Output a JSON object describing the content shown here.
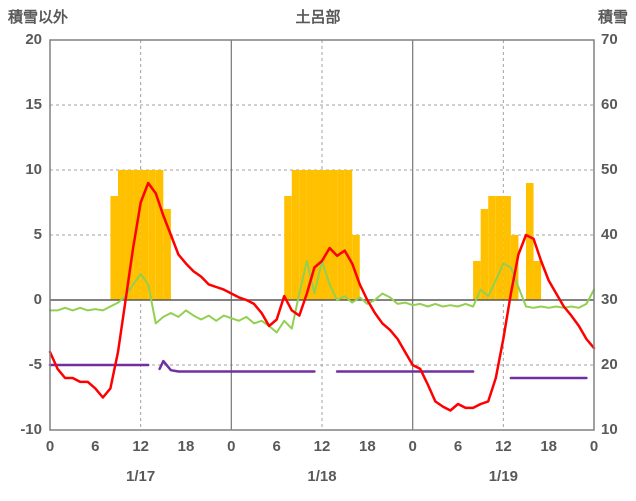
{
  "chart_data": {
    "type": "combo",
    "title": "土呂部",
    "left_axis": {
      "label": "積雪以外",
      "max": 20,
      "min": -10,
      "ticks": [
        20,
        15,
        10,
        5,
        0,
        -5,
        -10
      ]
    },
    "right_axis": {
      "label": "積雪",
      "max": 70,
      "min": 10,
      "ticks": [
        70,
        60,
        50,
        40,
        30,
        20,
        10
      ]
    },
    "x_axis": {
      "hours_total": 72,
      "tick_positions": [
        0,
        6,
        12,
        18,
        24,
        30,
        36,
        42,
        48,
        54,
        60,
        66,
        72
      ],
      "tick_labels": [
        "0",
        "6",
        "12",
        "18",
        "0",
        "6",
        "12",
        "18",
        "0",
        "6",
        "12",
        "18",
        "0"
      ],
      "day_labels": [
        "1/17",
        "1/18",
        "1/19"
      ],
      "day_label_positions": [
        12,
        36,
        60
      ],
      "solid_vlines": [
        24,
        48
      ],
      "dashed_vlines": [
        12,
        36,
        60
      ]
    },
    "grid": {
      "dashed_hlines": [
        15,
        10,
        5,
        -5
      ],
      "zero_line": 0
    },
    "colors": {
      "bar": "#FFC000",
      "red_line": "#FF0000",
      "green_line": "#92D050",
      "purple_line": "#7030A0",
      "grid": "#A0A0A0",
      "border": "#808080",
      "zero": "#595959",
      "text": "#595959",
      "background": "#FFFFFF"
    },
    "series": {
      "orange_bars": {
        "type": "bar",
        "axis": "left",
        "values": [
          [
            8,
            8
          ],
          [
            9,
            10
          ],
          [
            10,
            10
          ],
          [
            11,
            10
          ],
          [
            12,
            10
          ],
          [
            13,
            10
          ],
          [
            14,
            10
          ],
          [
            15,
            7
          ],
          [
            31,
            8
          ],
          [
            32,
            10
          ],
          [
            33,
            10
          ],
          [
            34,
            10
          ],
          [
            35,
            10
          ],
          [
            36,
            10
          ],
          [
            37,
            10
          ],
          [
            38,
            10
          ],
          [
            39,
            10
          ],
          [
            40,
            5
          ],
          [
            56,
            3
          ],
          [
            57,
            7
          ],
          [
            58,
            8
          ],
          [
            59,
            8
          ],
          [
            60,
            8
          ],
          [
            61,
            5
          ],
          [
            63,
            9
          ],
          [
            64,
            3
          ]
        ]
      },
      "red_line": {
        "type": "line",
        "axis": "left",
        "points": [
          [
            0,
            -4
          ],
          [
            1,
            -5.3
          ],
          [
            2,
            -6
          ],
          [
            3,
            -6
          ],
          [
            4,
            -6.3
          ],
          [
            5,
            -6.3
          ],
          [
            6,
            -6.8
          ],
          [
            7,
            -7.5
          ],
          [
            8,
            -6.8
          ],
          [
            9,
            -4
          ],
          [
            10,
            0
          ],
          [
            11,
            4
          ],
          [
            12,
            7.5
          ],
          [
            13,
            9
          ],
          [
            14,
            8.2
          ],
          [
            15,
            6.5
          ],
          [
            16,
            5
          ],
          [
            17,
            3.5
          ],
          [
            18,
            2.8
          ],
          [
            19,
            2.2
          ],
          [
            20,
            1.8
          ],
          [
            21,
            1.2
          ],
          [
            22,
            1
          ],
          [
            23,
            0.8
          ],
          [
            24,
            0.5
          ],
          [
            25,
            0.2
          ],
          [
            26,
            0
          ],
          [
            27,
            -0.3
          ],
          [
            28,
            -1
          ],
          [
            29,
            -2
          ],
          [
            30,
            -1.5
          ],
          [
            31,
            0.3
          ],
          [
            32,
            -0.8
          ],
          [
            33,
            -1.2
          ],
          [
            34,
            0.5
          ],
          [
            35,
            2.5
          ],
          [
            36,
            3
          ],
          [
            37,
            4
          ],
          [
            38,
            3.4
          ],
          [
            39,
            3.8
          ],
          [
            40,
            2.8
          ],
          [
            41,
            1.2
          ],
          [
            42,
            0
          ],
          [
            43,
            -1
          ],
          [
            44,
            -1.8
          ],
          [
            45,
            -2.3
          ],
          [
            46,
            -3
          ],
          [
            47,
            -4
          ],
          [
            48,
            -5
          ],
          [
            49,
            -5.3
          ],
          [
            50,
            -6.5
          ],
          [
            51,
            -7.8
          ],
          [
            52,
            -8.2
          ],
          [
            53,
            -8.5
          ],
          [
            54,
            -8
          ],
          [
            55,
            -8.3
          ],
          [
            56,
            -8.3
          ],
          [
            57,
            -8
          ],
          [
            58,
            -7.8
          ],
          [
            59,
            -6
          ],
          [
            60,
            -3
          ],
          [
            61,
            0.5
          ],
          [
            62,
            3.5
          ],
          [
            63,
            5
          ],
          [
            64,
            4.7
          ],
          [
            65,
            3
          ],
          [
            66,
            1.5
          ],
          [
            67,
            0.5
          ],
          [
            68,
            -0.5
          ],
          [
            69,
            -1.2
          ],
          [
            70,
            -2
          ],
          [
            71,
            -3
          ],
          [
            72,
            -3.7
          ]
        ]
      },
      "green_line": {
        "type": "line",
        "axis": "left",
        "points": [
          [
            0,
            -0.8
          ],
          [
            1,
            -0.8
          ],
          [
            2,
            -0.6
          ],
          [
            3,
            -0.8
          ],
          [
            4,
            -0.6
          ],
          [
            5,
            -0.8
          ],
          [
            6,
            -0.7
          ],
          [
            7,
            -0.8
          ],
          [
            8,
            -0.5
          ],
          [
            9,
            -0.2
          ],
          [
            10,
            0.3
          ],
          [
            11,
            1.2
          ],
          [
            12,
            2
          ],
          [
            13,
            1.2
          ],
          [
            14,
            -1.8
          ],
          [
            15,
            -1.3
          ],
          [
            16,
            -1
          ],
          [
            17,
            -1.3
          ],
          [
            18,
            -0.8
          ],
          [
            19,
            -1.2
          ],
          [
            20,
            -1.5
          ],
          [
            21,
            -1.2
          ],
          [
            22,
            -1.6
          ],
          [
            23,
            -1.2
          ],
          [
            24,
            -1.4
          ],
          [
            25,
            -1.6
          ],
          [
            26,
            -1.3
          ],
          [
            27,
            -1.8
          ],
          [
            28,
            -1.6
          ],
          [
            29,
            -2
          ],
          [
            30,
            -2.5
          ],
          [
            31,
            -1.6
          ],
          [
            32,
            -2.2
          ],
          [
            33,
            0.5
          ],
          [
            34,
            3
          ],
          [
            35,
            0.5
          ],
          [
            36,
            3
          ],
          [
            37,
            1.2
          ],
          [
            38,
            0
          ],
          [
            39,
            0.3
          ],
          [
            40,
            -0.2
          ],
          [
            41,
            0.2
          ],
          [
            42,
            -0.3
          ],
          [
            43,
            0
          ],
          [
            44,
            0.5
          ],
          [
            45,
            0.2
          ],
          [
            46,
            -0.3
          ],
          [
            47,
            -0.2
          ],
          [
            48,
            -0.4
          ],
          [
            49,
            -0.3
          ],
          [
            50,
            -0.5
          ],
          [
            51,
            -0.3
          ],
          [
            52,
            -0.5
          ],
          [
            53,
            -0.4
          ],
          [
            54,
            -0.5
          ],
          [
            55,
            -0.3
          ],
          [
            56,
            -0.5
          ],
          [
            57,
            0.8
          ],
          [
            58,
            0.3
          ],
          [
            59,
            1.5
          ],
          [
            60,
            2.8
          ],
          [
            61,
            2.5
          ],
          [
            62,
            1
          ],
          [
            63,
            -0.5
          ],
          [
            64,
            -0.6
          ],
          [
            65,
            -0.5
          ],
          [
            66,
            -0.6
          ],
          [
            67,
            -0.5
          ],
          [
            68,
            -0.6
          ],
          [
            69,
            -0.5
          ],
          [
            70,
            -0.6
          ],
          [
            71,
            -0.3
          ],
          [
            72,
            0.8
          ]
        ]
      },
      "purple_line": {
        "type": "line",
        "axis": "left",
        "right_axis_equivalents": [
          20,
          19,
          19,
          18
        ],
        "segments": [
          [
            [
              0,
              -5
            ],
            [
              13,
              -5
            ]
          ],
          [
            [
              14.5,
              -5.3
            ],
            [
              15,
              -4.7
            ],
            [
              16,
              -5.4
            ],
            [
              17,
              -5.5
            ],
            [
              35,
              -5.5
            ]
          ],
          [
            [
              38,
              -5.5
            ],
            [
              56,
              -5.5
            ]
          ],
          [
            [
              61,
              -6
            ],
            [
              71,
              -6
            ]
          ]
        ]
      }
    }
  }
}
